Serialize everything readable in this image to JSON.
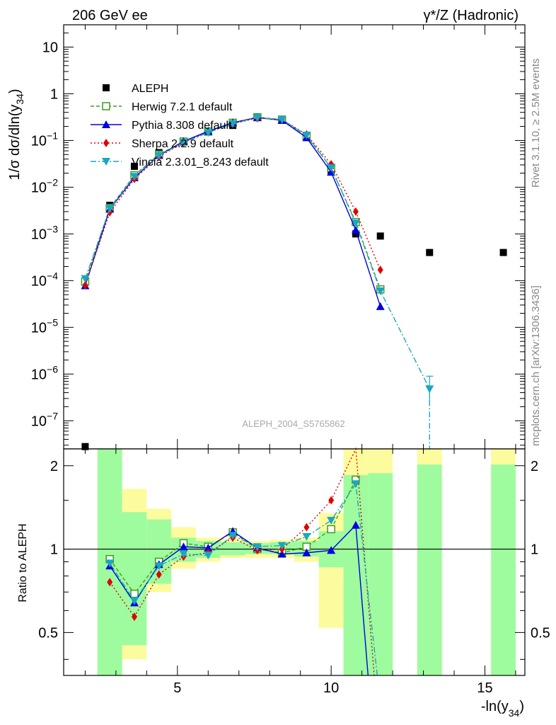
{
  "header": {
    "left_title": "206 GeV ee",
    "right_title": "γ*/Z (Hadronic)"
  },
  "side_labels": {
    "rivet": "Rivet 3.1.10, ≥ 2.5M events",
    "mcplots": "mcplots.cern.ch [arXiv:1306.3436]"
  },
  "watermark": "ALEPH_2004_S5765862",
  "main_ylabel": "1/σ  dσ/dln(y",
  "main_ylabel_sub": "34",
  "ratio_ylabel": "Ratio to ALEPH",
  "xlabel": "-ln(y",
  "xlabel_sub": "34",
  "xlabel_close": ")",
  "main_ylabel_close": ")",
  "main_yticks": [
    {
      "value": 1e-07,
      "base": "10",
      "exp": "−7"
    },
    {
      "value": 1e-06,
      "base": "10",
      "exp": "−6"
    },
    {
      "value": 1e-05,
      "base": "10",
      "exp": "−5"
    },
    {
      "value": 0.0001,
      "base": "10",
      "exp": "−4"
    },
    {
      "value": 0.001,
      "base": "10",
      "exp": "−3"
    },
    {
      "value": 0.01,
      "base": "10",
      "exp": "−2"
    },
    {
      "value": 0.1,
      "base": "10",
      "exp": "−1"
    },
    {
      "value": 1,
      "base": "1",
      "exp": ""
    },
    {
      "value": 10,
      "base": "10",
      "exp": ""
    }
  ],
  "ratio_yticks": [
    {
      "value": 0.5,
      "label": "0.5"
    },
    {
      "value": 1,
      "label": "1"
    },
    {
      "value": 2,
      "label": "2"
    }
  ],
  "xticks": [
    {
      "value": 5,
      "label": "5"
    },
    {
      "value": 10,
      "label": "10"
    },
    {
      "value": 15,
      "label": "15"
    }
  ],
  "colors": {
    "aleph": "#000000",
    "herwig": "#3f9c1e",
    "pythia": "#0000e0",
    "sherpa": "#e00000",
    "vincia": "#1aa6c2",
    "band_green": "#9efc9e",
    "band_yellow": "#fcfc9e"
  },
  "chart_data": {
    "type": "scatter",
    "xlim": [
      1.3,
      16.3
    ],
    "main_ylim": [
      2.5e-08,
      30
    ],
    "ratio_ylim": [
      0.35,
      2.3
    ],
    "log_y_main": true,
    "log_y_ratio": true,
    "legend_position": "top-left",
    "series": [
      {
        "name": "ALEPH",
        "x": [
          2.0,
          2.8,
          3.6,
          4.4,
          5.2,
          6.0,
          6.8,
          7.6,
          8.4,
          9.2,
          10.0,
          10.8,
          11.6,
          13.2,
          15.6
        ],
        "y": [
          2.8e-08,
          0.0041,
          0.028,
          0.055,
          0.095,
          0.155,
          0.21,
          0.31,
          0.28,
          0.12,
          0.022,
          0.001,
          0.0009,
          0.0004,
          0.0004
        ]
      },
      {
        "name": "Herwig 7.2.1 default",
        "x": [
          2.0,
          2.8,
          3.6,
          4.4,
          5.2,
          6.0,
          6.8,
          7.6,
          8.4,
          9.2,
          10.0,
          10.8,
          11.6
        ],
        "y": [
          9.5e-05,
          0.0036,
          0.018,
          0.05,
          0.095,
          0.155,
          0.24,
          0.315,
          0.28,
          0.125,
          0.026,
          0.0018,
          6.5e-05
        ]
      },
      {
        "name": "Pythia 8.308 default",
        "x": [
          2.0,
          2.8,
          3.6,
          4.4,
          5.2,
          6.0,
          6.8,
          7.6,
          8.4,
          9.2,
          10.0,
          10.8,
          11.6
        ],
        "y": [
          7.8e-05,
          0.0034,
          0.016,
          0.048,
          0.096,
          0.158,
          0.24,
          0.31,
          0.27,
          0.115,
          0.021,
          0.0012,
          2.8e-05
        ]
      },
      {
        "name": "Sherpa 2.2.9 default",
        "x": [
          2.0,
          2.8,
          3.6,
          4.4,
          5.2,
          6.0,
          6.8,
          7.6,
          8.4,
          9.2,
          10.0,
          10.8,
          11.6
        ],
        "y": [
          8e-05,
          0.0029,
          0.015,
          0.045,
          0.09,
          0.15,
          0.23,
          0.3,
          0.28,
          0.135,
          0.031,
          0.003,
          0.00017
        ]
      },
      {
        "name": "Vincia 2.3.01_8.243 default",
        "x": [
          2.0,
          2.8,
          3.6,
          4.4,
          5.2,
          6.0,
          6.8,
          7.6,
          8.4,
          9.2,
          10.0,
          10.8,
          11.6,
          13.2
        ],
        "y": [
          0.00011,
          0.0035,
          0.017,
          0.048,
          0.091,
          0.148,
          0.23,
          0.31,
          0.28,
          0.13,
          0.026,
          0.0017,
          6e-05,
          4.8e-07
        ]
      }
    ],
    "ratio_series": [
      {
        "name": "Herwig 7.2.1 default",
        "x": [
          2.8,
          3.6,
          4.4,
          5.2,
          6.0,
          6.8,
          7.6,
          8.4,
          9.2,
          10.0,
          10.8
        ],
        "y": [
          0.92,
          0.69,
          0.9,
          1.05,
          1.02,
          1.15,
          1.0,
          0.97,
          1.02,
          1.18,
          1.78
        ]
      },
      {
        "name": "Pythia 8.308 default",
        "x": [
          2.8,
          3.6,
          4.4,
          5.2,
          6.0,
          6.8,
          7.6,
          8.4,
          9.2,
          10.0,
          10.8,
          11.2
        ],
        "y": [
          0.87,
          0.64,
          0.88,
          1.02,
          1.01,
          1.16,
          1.01,
          0.96,
          0.97,
          0.99,
          1.22,
          0.3
        ]
      },
      {
        "name": "Sherpa 2.2.9 default",
        "x": [
          2.8,
          3.6,
          4.4,
          5.2,
          6.0,
          6.8,
          7.6,
          8.4,
          9.2,
          10.0,
          10.8,
          11.4
        ],
        "y": [
          0.76,
          0.57,
          0.81,
          0.94,
          0.97,
          1.1,
          0.99,
          1.0,
          1.2,
          1.5,
          3.0,
          0.3
        ]
      },
      {
        "name": "Vincia 2.3.01_8.243 default",
        "x": [
          2.8,
          3.6,
          4.4,
          5.2,
          6.0,
          6.8,
          7.6,
          8.4,
          9.2,
          10.0,
          10.8,
          11.5
        ],
        "y": [
          0.89,
          0.65,
          0.87,
          0.96,
          0.95,
          1.12,
          1.02,
          1.03,
          1.11,
          1.27,
          1.72,
          0.3
        ]
      }
    ],
    "ratio_bands": [
      {
        "x0": 2.4,
        "x1": 3.2,
        "g0": 0.35,
        "g1": 2.3,
        "y0": 0.35,
        "y1": 2.3
      },
      {
        "x0": 3.2,
        "x1": 4.0,
        "g0": 0.45,
        "g1": 1.36,
        "y0": 0.4,
        "y1": 1.65
      },
      {
        "x0": 4.0,
        "x1": 4.8,
        "g0": 0.75,
        "g1": 1.28,
        "y0": 0.7,
        "y1": 1.4
      },
      {
        "x0": 4.8,
        "x1": 5.6,
        "g0": 0.9,
        "g1": 1.1,
        "y0": 0.85,
        "y1": 1.2
      },
      {
        "x0": 5.6,
        "x1": 6.4,
        "g0": 0.93,
        "g1": 1.07,
        "y0": 0.9,
        "y1": 1.1
      },
      {
        "x0": 6.4,
        "x1": 7.2,
        "g0": 0.95,
        "g1": 1.06,
        "y0": 0.93,
        "y1": 1.09
      },
      {
        "x0": 7.2,
        "x1": 8.0,
        "g0": 0.96,
        "g1": 1.05,
        "y0": 0.93,
        "y1": 1.07
      },
      {
        "x0": 8.0,
        "x1": 8.8,
        "g0": 0.96,
        "g1": 1.06,
        "y0": 0.93,
        "y1": 1.08
      },
      {
        "x0": 8.8,
        "x1": 9.6,
        "g0": 0.94,
        "g1": 1.07,
        "y0": 0.9,
        "y1": 1.1
      },
      {
        "x0": 9.6,
        "x1": 10.4,
        "g0": 0.86,
        "g1": 1.16,
        "y0": 0.52,
        "y1": 1.35
      },
      {
        "x0": 10.4,
        "x1": 11.2,
        "g0": 0.35,
        "g1": 1.85,
        "y0": 0.35,
        "y1": 2.3
      },
      {
        "x0": 11.2,
        "x1": 12.0,
        "g0": 0.35,
        "g1": 1.88,
        "y0": 0.35,
        "y1": 2.3
      },
      {
        "x0": 12.8,
        "x1": 13.6,
        "g0": 0.35,
        "g1": 2.02,
        "y0": 0.35,
        "y1": 2.3
      },
      {
        "x0": 15.2,
        "x1": 16.0,
        "g0": 0.35,
        "g1": 2.02,
        "y0": 0.35,
        "y1": 2.3
      }
    ]
  }
}
